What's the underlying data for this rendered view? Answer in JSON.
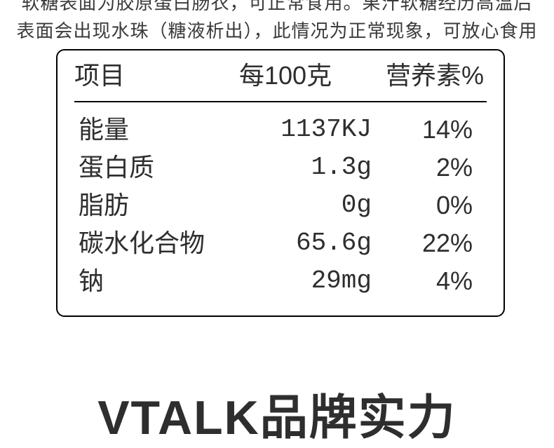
{
  "note": {
    "line1": "软糖表面为胶原蛋白肠衣，可正常食用。果汁软糖经历高温后",
    "line2": "表面会出现水珠（糖液析出），此情况为正常现象，可放心食用"
  },
  "table": {
    "header": {
      "c1": "项目",
      "c2": "每100克",
      "c3": "营养素%"
    },
    "rows": [
      {
        "c1": "能量",
        "c2": "1137KJ",
        "c3": "14%"
      },
      {
        "c1": "蛋白质",
        "c2": "1.3g",
        "c3": "2%"
      },
      {
        "c1": "脂肪",
        "c2": "0g",
        "c3": "0%"
      },
      {
        "c1": "碳水化合物",
        "c2": "65.6g",
        "c3": "22%"
      },
      {
        "c1": "钠",
        "c2": "29mg",
        "c3": "4%"
      }
    ]
  },
  "bottom": "VTALK品牌实力"
}
